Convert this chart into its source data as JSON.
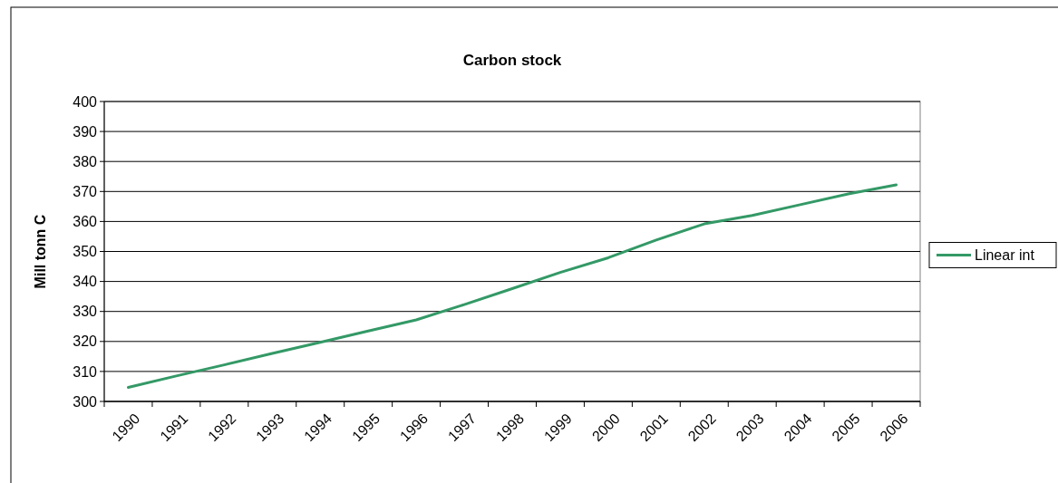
{
  "chart_data": {
    "type": "line",
    "title": "Carbon stock",
    "ylabel": "Mill tonn C",
    "categories": [
      "1990",
      "1991",
      "1992",
      "1993",
      "1994",
      "1995",
      "1996",
      "1997",
      "1998",
      "1999",
      "2000",
      "2001",
      "2002",
      "2003",
      "2004",
      "2005",
      "2006"
    ],
    "series": [
      {
        "name": "Linear int",
        "color": "#339966",
        "values": [
          304.7,
          308.5,
          312.2,
          316,
          319.7,
          323.5,
          327.2,
          332.3,
          337.6,
          343,
          347.9,
          353.8,
          359.2,
          362,
          365.6,
          369.2,
          372.2
        ]
      }
    ],
    "ylim": [
      300,
      400
    ],
    "yticks": [
      300,
      310,
      320,
      330,
      340,
      350,
      360,
      370,
      380,
      390,
      400
    ],
    "grid": "y",
    "legend": "right",
    "marker": "none",
    "line_style": "solid"
  }
}
